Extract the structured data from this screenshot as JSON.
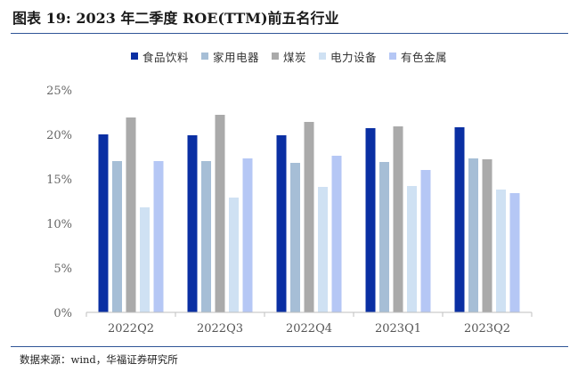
{
  "figure": {
    "title": "图表 19:  2023 年二季度 ROE(TTM)前五名行业",
    "source": "数据来源：wind，华福证券研究所"
  },
  "chart_data": {
    "type": "bar",
    "categories": [
      "2022Q2",
      "2022Q3",
      "2022Q4",
      "2023Q1",
      "2023Q2"
    ],
    "series": [
      {
        "name": "食品饮料",
        "color": "#0a2fa3",
        "values": [
          20.0,
          19.9,
          19.9,
          20.7,
          20.8
        ]
      },
      {
        "name": "家用电器",
        "color": "#a6bed6",
        "values": [
          17.0,
          17.0,
          16.8,
          16.9,
          17.3
        ]
      },
      {
        "name": "煤炭",
        "color": "#aaaaaa",
        "values": [
          21.9,
          22.2,
          21.4,
          20.9,
          17.2
        ]
      },
      {
        "name": "电力设备",
        "color": "#cfe1f3",
        "values": [
          11.8,
          12.9,
          14.1,
          14.2,
          13.8
        ]
      },
      {
        "name": "有色金属",
        "color": "#b5c7f5",
        "values": [
          17.0,
          17.3,
          17.6,
          16.0,
          13.4
        ]
      }
    ],
    "ylim": [
      0,
      25
    ],
    "yticks": [
      0,
      5,
      10,
      15,
      20,
      25
    ],
    "ytick_labels": [
      "0%",
      "5%",
      "10%",
      "15%",
      "20%",
      "25%"
    ],
    "grid": false,
    "legend_position": "top-center"
  }
}
